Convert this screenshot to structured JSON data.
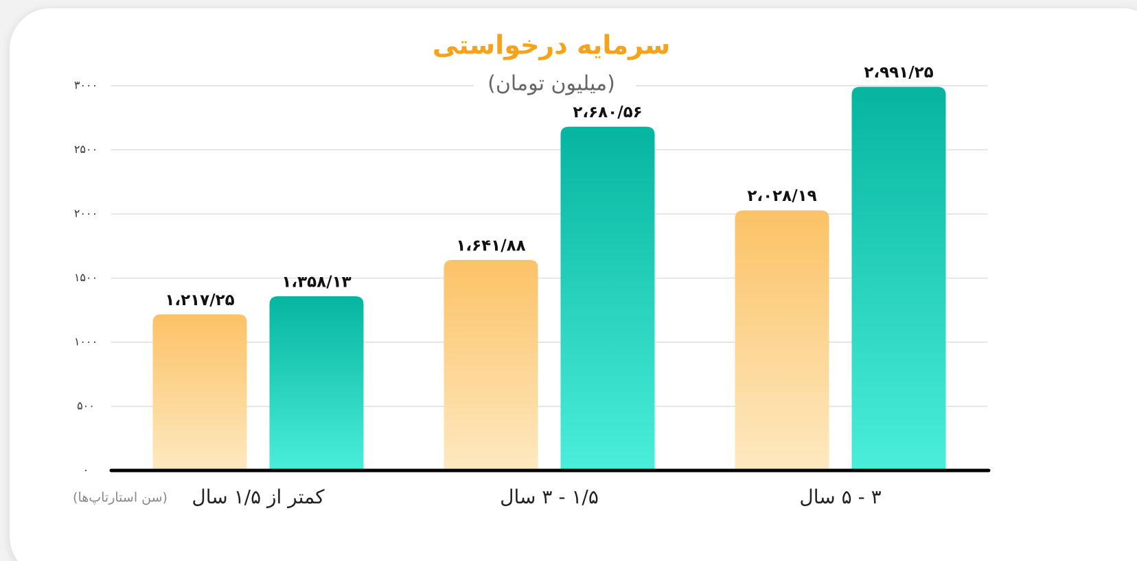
{
  "chart_data": {
    "type": "bar",
    "title": "سرمایه درخواستی",
    "subtitle": "(میلیون تومان)",
    "x_label": "(سن استارتاپ‌ها)",
    "categories": [
      "کمتر از ۱/۵ سال",
      "۱/۵ - ۳ سال",
      "۳ - ۵ سال"
    ],
    "series": [
      {
        "color": "#fcc266",
        "values": [
          1217.25,
          1641.88,
          2028.19
        ],
        "value_labels": [
          "۱،۲۱۷/۲۵",
          "۱،۶۴۱/۸۸",
          "۲،۰۲۸/۱۹"
        ]
      },
      {
        "color": "#05b5a0",
        "values": [
          1358.13,
          2680.56,
          2991.25
        ],
        "value_labels": [
          "۱،۳۵۸/۱۳",
          "۲،۶۸۰/۵۶",
          "۲،۹۹۱/۲۵"
        ]
      }
    ],
    "ylim": [
      0,
      3000
    ],
    "yticks": [
      {
        "value": 0,
        "label": "۰"
      },
      {
        "value": 500,
        "label": "۵۰۰"
      },
      {
        "value": 1000,
        "label": "۱۰۰۰"
      },
      {
        "value": 1500,
        "label": "۱۵۰۰"
      },
      {
        "value": 2000,
        "label": "۲۰۰۰"
      },
      {
        "value": 2500,
        "label": "۲۵۰۰"
      },
      {
        "value": 3000,
        "label": "۳۰۰۰"
      }
    ],
    "grid": true
  }
}
